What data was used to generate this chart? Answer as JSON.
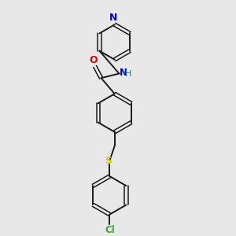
{
  "bg_color": "#e8e8e8",
  "bond_color": "#1a1a1a",
  "n_color": "#0000cc",
  "o_color": "#dd0000",
  "s_color": "#cccc00",
  "cl_color": "#33aa33",
  "h_color": "#008888",
  "figsize": [
    3.0,
    3.0
  ],
  "dpi": 100,
  "xlim": [
    0,
    10
  ],
  "ylim": [
    0,
    10
  ]
}
